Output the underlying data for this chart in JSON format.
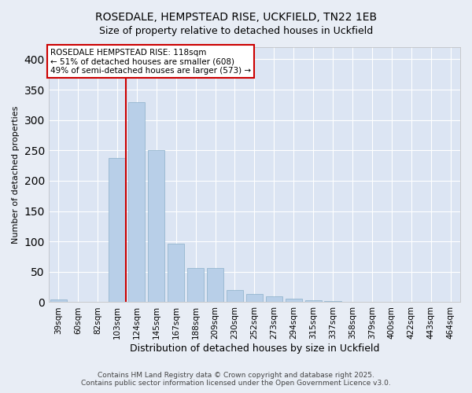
{
  "title1": "ROSEDALE, HEMPSTEAD RISE, UCKFIELD, TN22 1EB",
  "title2": "Size of property relative to detached houses in Uckfield",
  "xlabel": "Distribution of detached houses by size in Uckfield",
  "ylabel": "Number of detached properties",
  "categories": [
    "39sqm",
    "60sqm",
    "82sqm",
    "103sqm",
    "124sqm",
    "145sqm",
    "167sqm",
    "188sqm",
    "209sqm",
    "230sqm",
    "252sqm",
    "273sqm",
    "294sqm",
    "315sqm",
    "337sqm",
    "358sqm",
    "379sqm",
    "400sqm",
    "422sqm",
    "443sqm",
    "464sqm"
  ],
  "values": [
    5,
    0,
    0,
    238,
    330,
    250,
    96,
    56,
    56,
    20,
    13,
    10,
    6,
    3,
    2,
    1,
    1,
    0,
    0,
    1,
    0
  ],
  "bar_color": "#b8cfe8",
  "bar_edge_color": "#8aafc8",
  "red_line_index": 3,
  "annotation_text_line1": "ROSEDALE HEMPSTEAD RISE: 118sqm",
  "annotation_text_line2": "← 51% of detached houses are smaller (608)",
  "annotation_text_line3": "49% of semi-detached houses are larger (573) →",
  "annotation_box_color": "#ffffff",
  "annotation_border_color": "#cc0000",
  "red_line_color": "#cc0000",
  "background_color": "#e8edf5",
  "plot_bg_color": "#dce5f3",
  "grid_color": "#ffffff",
  "ylim": [
    0,
    420
  ],
  "yticks": [
    0,
    50,
    100,
    150,
    200,
    250,
    300,
    350,
    400
  ],
  "footer_line1": "Contains HM Land Registry data © Crown copyright and database right 2025.",
  "footer_line2": "Contains public sector information licensed under the Open Government Licence v3.0."
}
